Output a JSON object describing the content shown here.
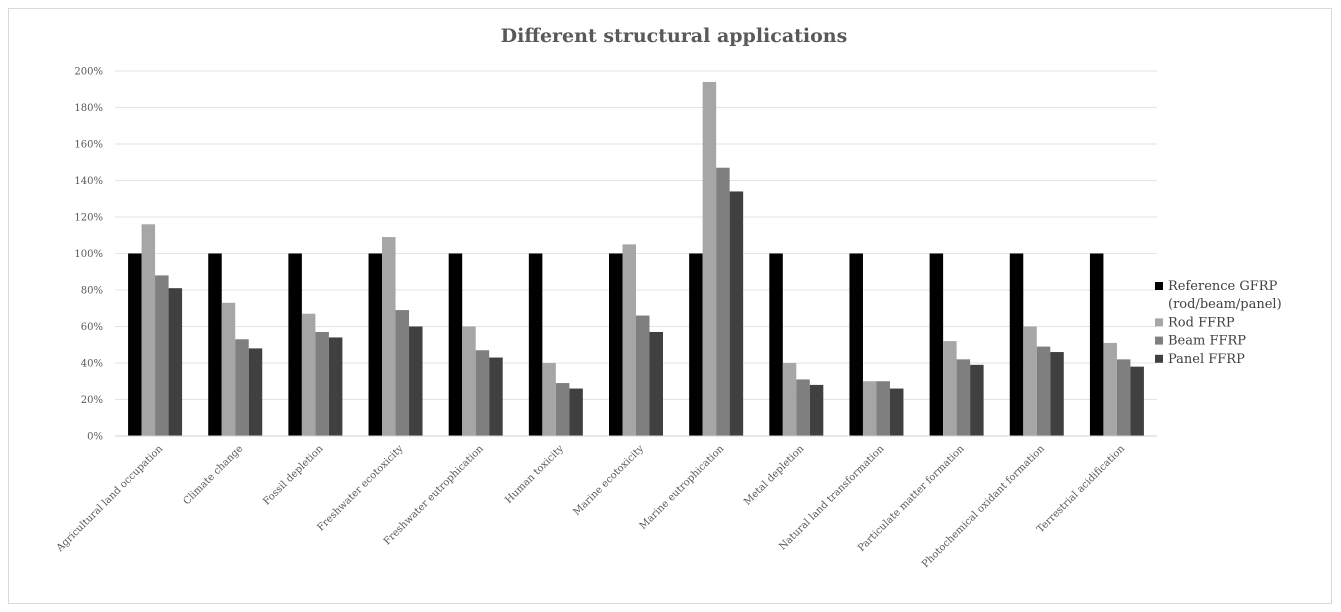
{
  "chart_data": {
    "type": "bar",
    "title": "Different structural applications",
    "xlabel": "",
    "ylabel": "",
    "ylim": [
      0,
      200
    ],
    "y_ticks": [
      "0%",
      "20%",
      "40%",
      "60%",
      "80%",
      "100%",
      "120%",
      "140%",
      "160%",
      "180%",
      "200%"
    ],
    "grid": true,
    "legend_position": "right",
    "categories": [
      "Agricultural land occupation",
      "Climate change",
      "Fossil depletion",
      "Freshwater ecotoxicity",
      "Freshwater eutrophication",
      "Human toxicity",
      "Marine ecotoxicity",
      "Marine eutrophication",
      "Metal depletion",
      "Natural land transformation",
      "Particulate matter formation",
      "Photochemical oxidant formation",
      "Terrestrial acidification"
    ],
    "series": [
      {
        "name": "Reference GFRP (rod/beam/panel)",
        "legend_lines": [
          "Reference GFRP",
          "(rod/beam/panel)"
        ],
        "color": "#000000",
        "values": [
          100,
          100,
          100,
          100,
          100,
          100,
          100,
          100,
          100,
          100,
          100,
          100,
          100
        ]
      },
      {
        "name": "Rod FFRP",
        "legend_lines": [
          "Rod FFRP"
        ],
        "color": "#a6a6a6",
        "values": [
          116,
          73,
          67,
          109,
          60,
          40,
          105,
          194,
          40,
          30,
          52,
          60,
          51
        ]
      },
      {
        "name": "Beam FFRP",
        "legend_lines": [
          "Beam FFRP"
        ],
        "color": "#7f7f7f",
        "values": [
          88,
          53,
          57,
          69,
          47,
          29,
          66,
          147,
          31,
          30,
          42,
          49,
          42
        ]
      },
      {
        "name": "Panel FFRP",
        "legend_lines": [
          "Panel FFRP"
        ],
        "color": "#404040",
        "values": [
          81,
          48,
          54,
          60,
          43,
          26,
          57,
          134,
          28,
          26,
          39,
          46,
          38
        ]
      }
    ]
  }
}
